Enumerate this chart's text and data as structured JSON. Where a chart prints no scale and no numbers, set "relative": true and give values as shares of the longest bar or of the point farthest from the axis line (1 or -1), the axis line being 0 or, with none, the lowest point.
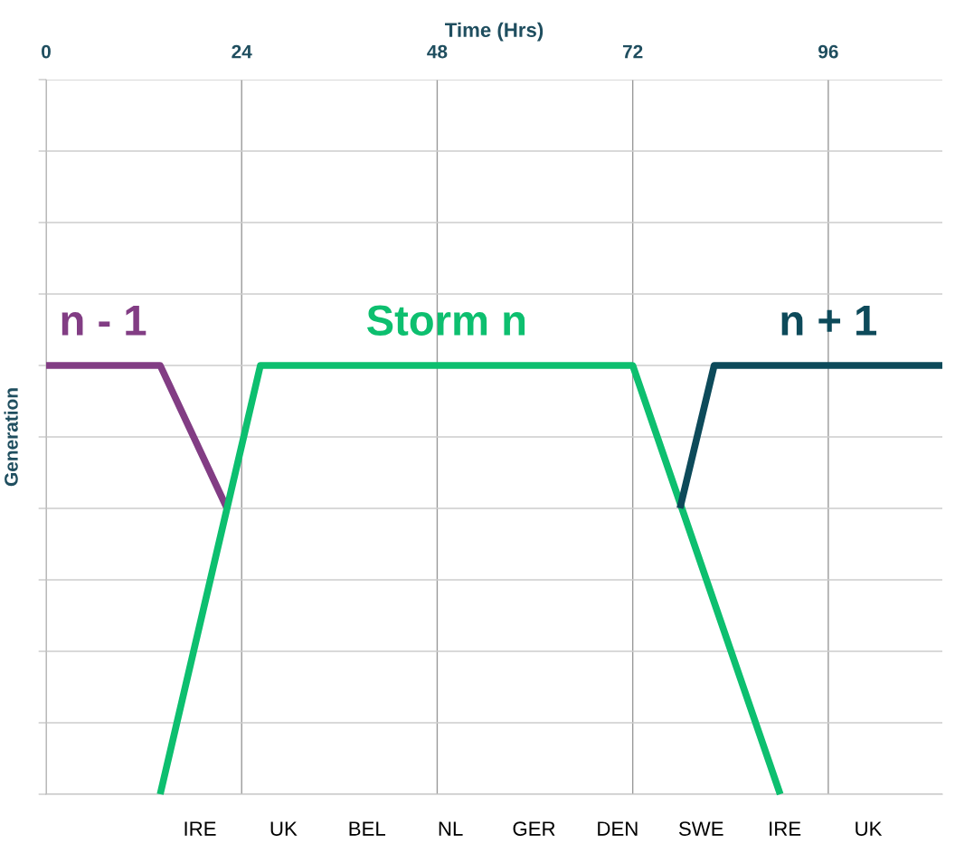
{
  "chart_data": {
    "type": "line",
    "relative": true,
    "xlabel": "Time (Hrs)",
    "ylabel": "Generation",
    "xlim": [
      0,
      110
    ],
    "xticks": [
      0,
      24,
      48,
      72,
      96
    ],
    "grid": true,
    "annotations": [
      "IRE",
      "UK",
      "BEL",
      "NL",
      "GER",
      "DEN",
      "SWE",
      "IRE",
      "UK"
    ],
    "legend": false,
    "marker": "none",
    "line_style": "solid",
    "series": [
      {
        "name": "n - 1",
        "color": "#823d84",
        "x": [
          0,
          14,
          22.2
        ],
        "values": [
          1,
          1,
          0.667
        ]
      },
      {
        "name": "Storm n",
        "color": "#0dbf6f",
        "x": [
          14,
          26.3,
          72,
          90.1
        ],
        "values": [
          0,
          1,
          1,
          0
        ]
      },
      {
        "name": "n + 1",
        "color": "#0d4a5a",
        "x": [
          77.8,
          82,
          110
        ],
        "values": [
          0.667,
          1,
          1
        ]
      }
    ]
  }
}
